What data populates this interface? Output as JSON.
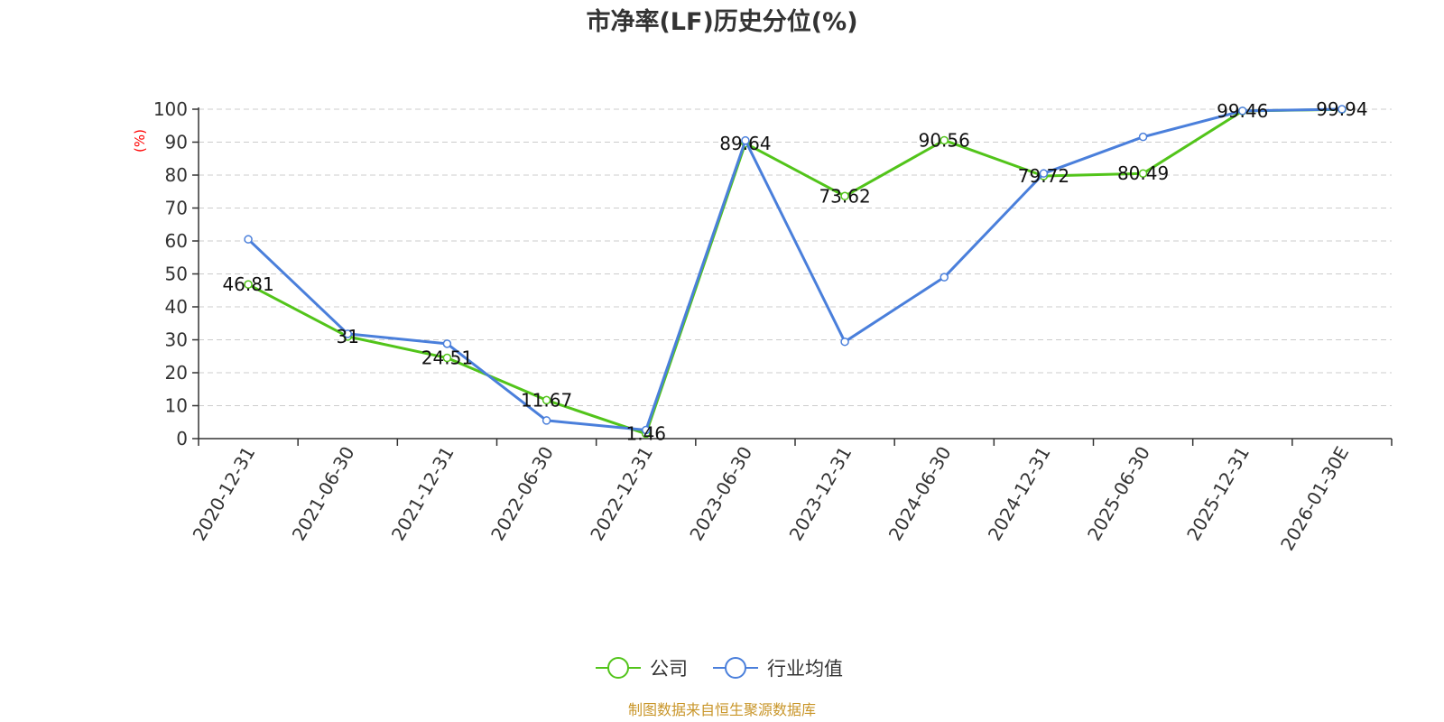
{
  "chart_data": {
    "type": "line",
    "title": "市净率(LF)历史分位(%)",
    "ylabel": "(%)",
    "ylim": [
      0,
      100
    ],
    "yticks": [
      0,
      10,
      20,
      30,
      40,
      50,
      60,
      70,
      80,
      90,
      100
    ],
    "grid": true,
    "legend_position": "bottom",
    "categories": [
      "2020-12-31",
      "2021-06-30",
      "2021-12-31",
      "2022-06-30",
      "2022-12-31",
      "2023-06-30",
      "2023-12-31",
      "2024-06-30",
      "2024-12-31",
      "2025-06-30",
      "2025-12-31",
      "2026-01-30E"
    ],
    "series": [
      {
        "name": "公司",
        "color": "#52c41a",
        "values": [
          46.81,
          31,
          24.51,
          11.67,
          1.46,
          89.64,
          73.62,
          90.56,
          79.72,
          80.49,
          99.46,
          99.94
        ],
        "labels": [
          "46.81",
          "31",
          "24.51",
          "11.67",
          "1.46",
          "89.64",
          "73.62",
          "90.56",
          "79.72",
          "80.49",
          "99.46",
          "99.94"
        ]
      },
      {
        "name": "行业均值",
        "color": "#4a7fdb",
        "values": [
          60.5,
          31.8,
          28.8,
          5.5,
          2.6,
          90.5,
          29.4,
          49,
          80.5,
          91.6,
          99.5,
          100
        ]
      }
    ],
    "source": "制图数据来自恒生聚源数据库"
  },
  "colors": {
    "ylabel": "#ff0000",
    "source": "#c9962a",
    "grid": "#cccccc",
    "axis": "#333333"
  }
}
